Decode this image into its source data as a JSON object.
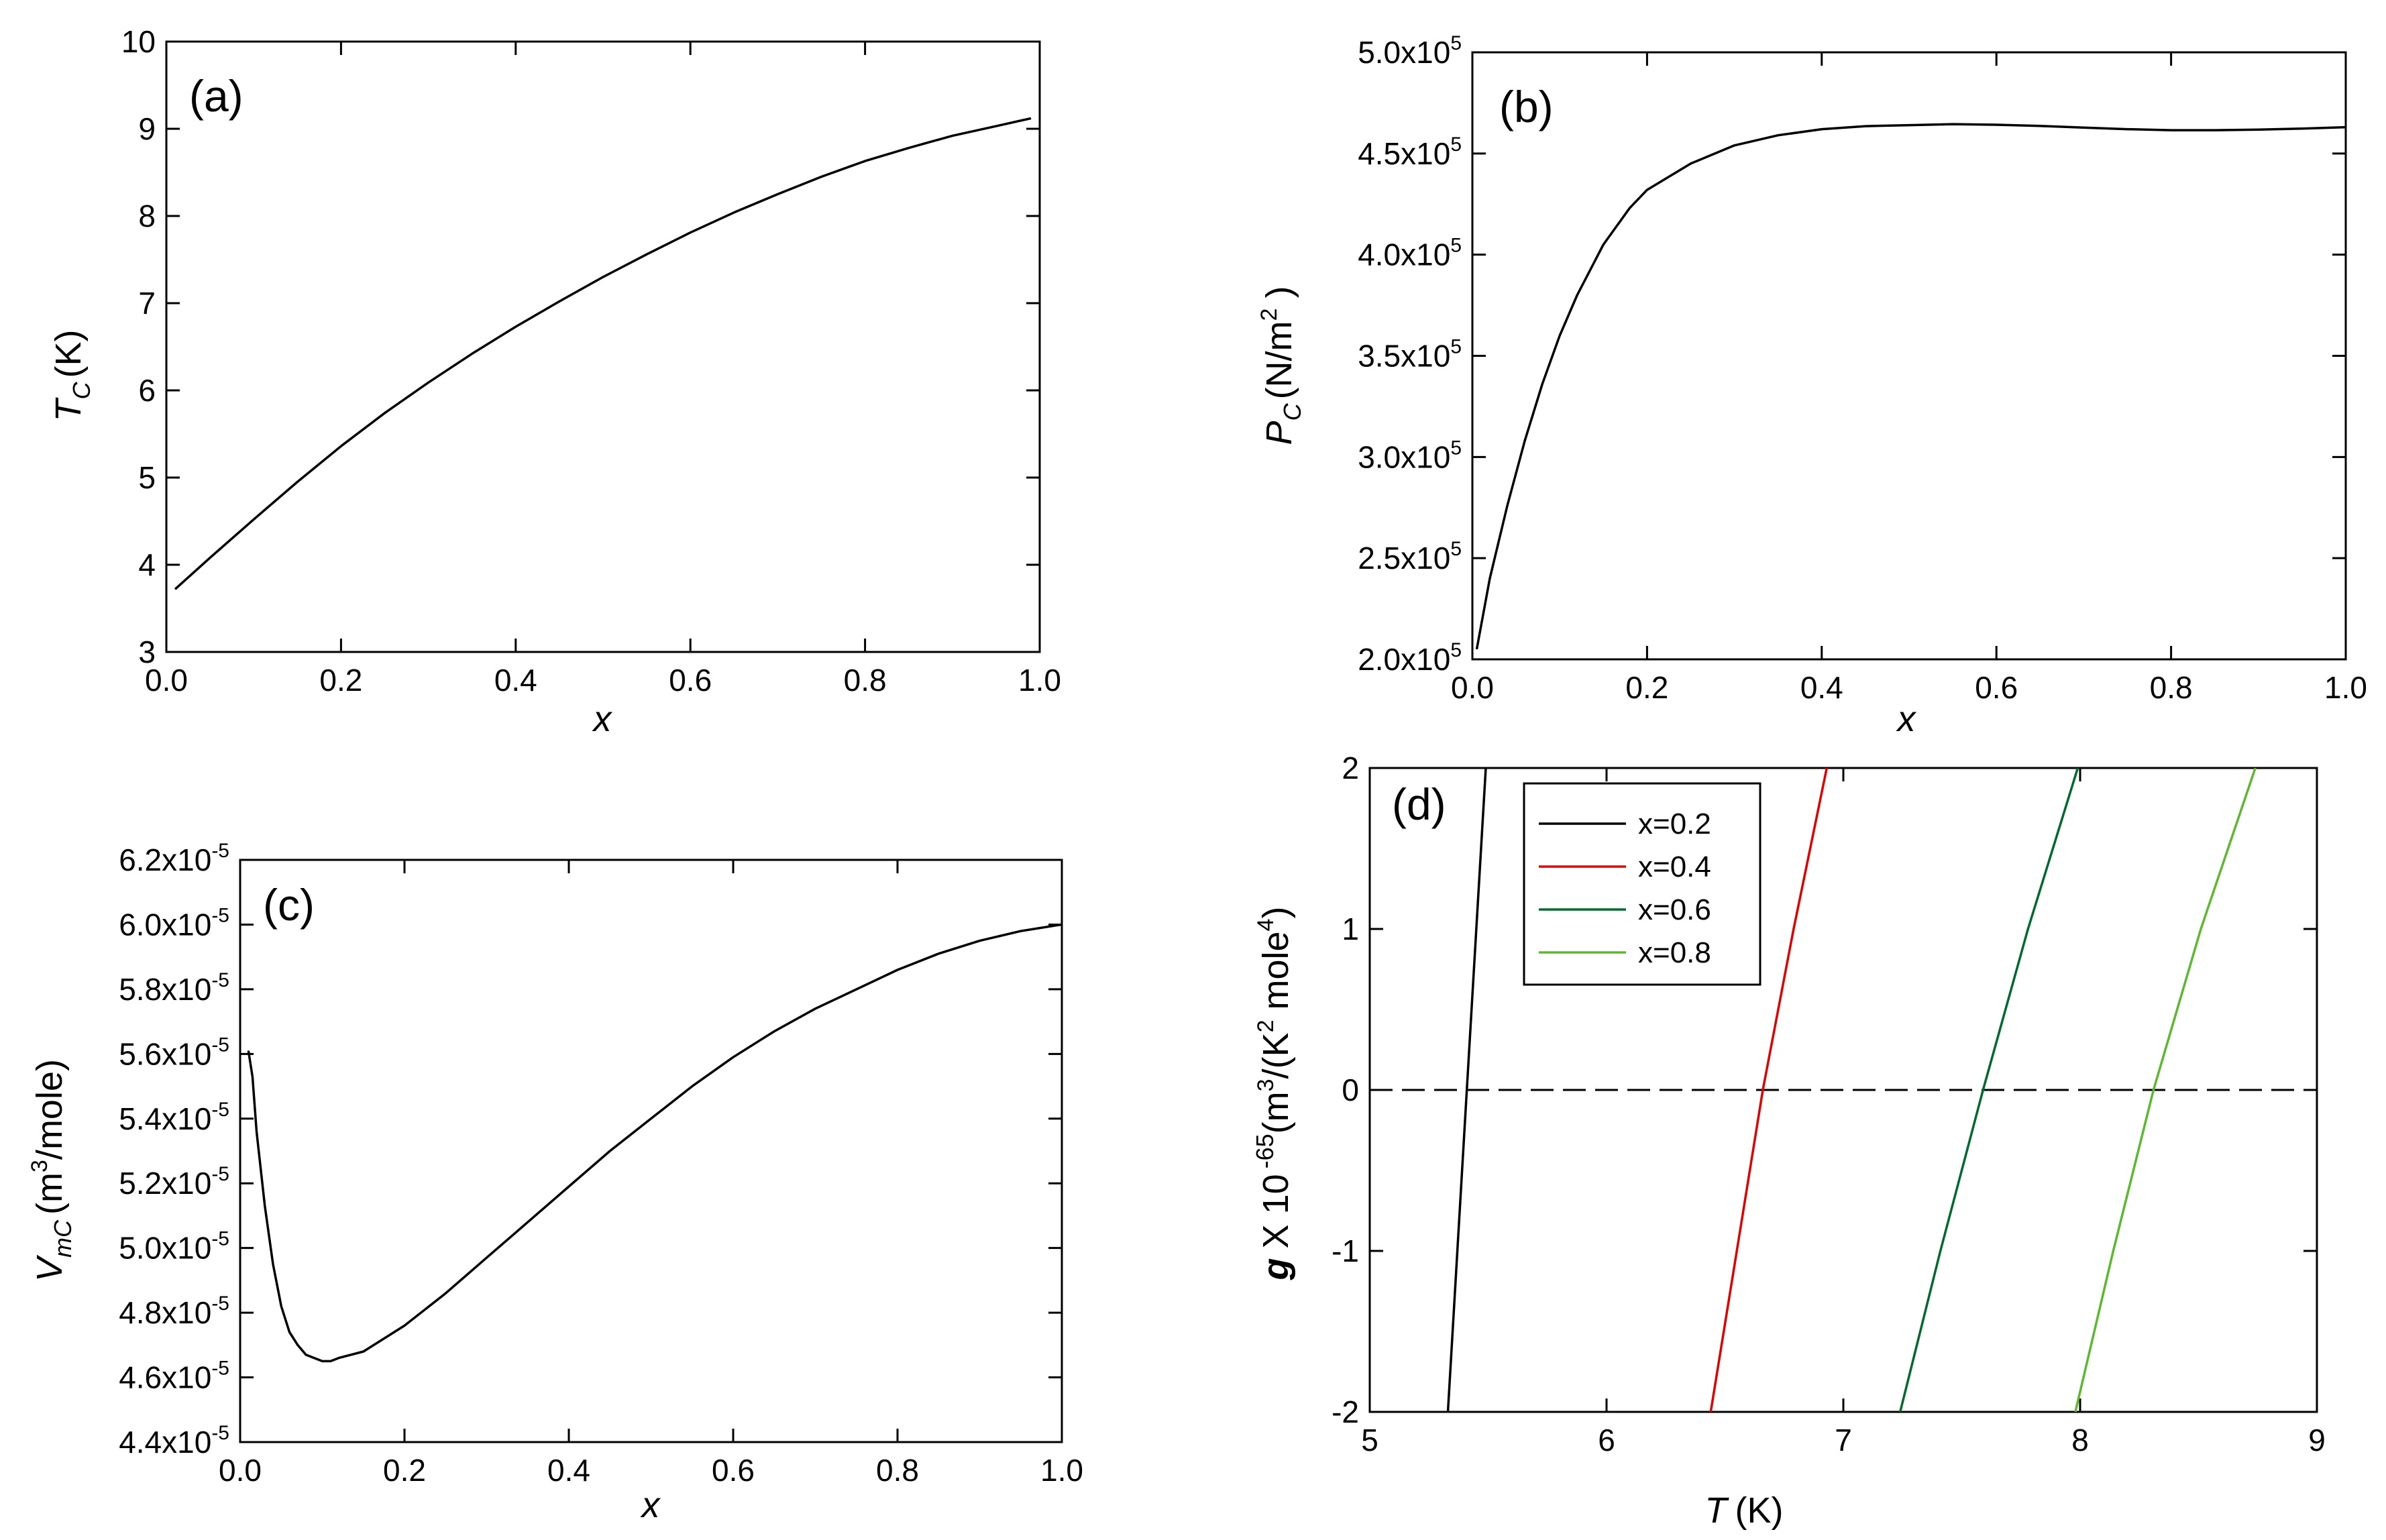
{
  "chart_data": [
    {
      "id": "a",
      "type": "line",
      "panel_label": "(a)",
      "xlabel": "x",
      "ylabel_main": "T",
      "ylabel_sub": "C",
      "ylabel_unit": "(K)",
      "xlim": [
        0.0,
        1.0
      ],
      "ylim": [
        3,
        10
      ],
      "xticks": [
        0.0,
        0.2,
        0.4,
        0.6,
        0.8,
        1.0
      ],
      "xtick_labels": [
        "0.0",
        "0.2",
        "0.4",
        "0.6",
        "0.8",
        "1.0"
      ],
      "yticks": [
        3,
        4,
        5,
        6,
        7,
        8,
        9,
        10
      ],
      "ytick_labels": [
        "3",
        "4",
        "5",
        "6",
        "7",
        "8",
        "9",
        "10"
      ],
      "series": [
        {
          "name": "Tc",
          "color": "#000000",
          "x": [
            0.01,
            0.05,
            0.1,
            0.15,
            0.2,
            0.25,
            0.3,
            0.35,
            0.4,
            0.45,
            0.5,
            0.55,
            0.6,
            0.65,
            0.7,
            0.75,
            0.8,
            0.85,
            0.9,
            0.95,
            0.99
          ],
          "y": [
            3.72,
            4.08,
            4.52,
            4.95,
            5.36,
            5.74,
            6.09,
            6.42,
            6.73,
            7.02,
            7.3,
            7.56,
            7.81,
            8.04,
            8.25,
            8.45,
            8.63,
            8.78,
            8.92,
            9.03,
            9.12
          ]
        }
      ]
    },
    {
      "id": "b",
      "type": "line",
      "panel_label": "(b)",
      "xlabel": "x",
      "ylabel_main": "P",
      "ylabel_sub": "C",
      "ylabel_unit": "(N/m",
      "ylabel_unit_sup": "2",
      "ylabel_unit_end": " )",
      "xlim": [
        0.0,
        1.0
      ],
      "ylim": [
        200000,
        500000
      ],
      "xticks": [
        0.0,
        0.2,
        0.4,
        0.6,
        0.8,
        1.0
      ],
      "xtick_labels": [
        "0.0",
        "0.2",
        "0.4",
        "0.6",
        "0.8",
        "1.0"
      ],
      "yticks": [
        200000,
        250000,
        300000,
        350000,
        400000,
        450000,
        500000
      ],
      "ytick_labels": [
        "2.0x10",
        "2.5x10",
        "3.0x10",
        "3.5x10",
        "4.0x10",
        "4.5x10",
        "5.0x10"
      ],
      "ytick_exponents": [
        "5",
        "5",
        "5",
        "5",
        "5",
        "5",
        "5"
      ],
      "series": [
        {
          "name": "Pc",
          "color": "#000000",
          "x": [
            0.005,
            0.02,
            0.04,
            0.06,
            0.08,
            0.1,
            0.12,
            0.15,
            0.18,
            0.2,
            0.25,
            0.3,
            0.35,
            0.4,
            0.45,
            0.5,
            0.55,
            0.6,
            0.65,
            0.7,
            0.75,
            0.8,
            0.85,
            0.9,
            0.95,
            1.0
          ],
          "y": [
            205000,
            240000,
            276000,
            308000,
            336000,
            360000,
            380000,
            405000,
            423000,
            432000,
            445000,
            454000,
            459000,
            462000,
            463500,
            464000,
            464500,
            464200,
            463600,
            462800,
            462000,
            461500,
            461500,
            461800,
            462300,
            463000
          ]
        }
      ]
    },
    {
      "id": "c",
      "type": "line",
      "panel_label": "(c)",
      "xlabel": "x",
      "ylabel_main": "V",
      "ylabel_sub": "mC",
      "ylabel_unit": "(m",
      "ylabel_unit_sup": "3",
      "ylabel_unit_end": "/mole)",
      "xlim": [
        0.0,
        1.0
      ],
      "ylim": [
        4.4e-05,
        6.2e-05
      ],
      "xticks": [
        0.0,
        0.2,
        0.4,
        0.6,
        0.8,
        1.0
      ],
      "xtick_labels": [
        "0.0",
        "0.2",
        "0.4",
        "0.6",
        "0.8",
        "1.0"
      ],
      "yticks": [
        4.4e-05,
        4.6e-05,
        4.8e-05,
        5e-05,
        5.2e-05,
        5.4e-05,
        5.6e-05,
        5.8e-05,
        6e-05,
        6.2e-05
      ],
      "ytick_labels": [
        "4.4x10",
        "4.6x10",
        "4.8x10",
        "5.0x10",
        "5.2x10",
        "5.4x10",
        "5.6x10",
        "5.8x10",
        "6.0x10",
        "6.2x10"
      ],
      "ytick_exponents": [
        "-5",
        "-5",
        "-5",
        "-5",
        "-5",
        "-5",
        "-5",
        "-5",
        "-5",
        "-5"
      ],
      "series": [
        {
          "name": "Vmc",
          "color": "#000000",
          "x": [
            0.01,
            0.015,
            0.02,
            0.03,
            0.04,
            0.05,
            0.06,
            0.07,
            0.08,
            0.09,
            0.1,
            0.11,
            0.12,
            0.15,
            0.2,
            0.25,
            0.3,
            0.35,
            0.4,
            0.45,
            0.5,
            0.55,
            0.6,
            0.65,
            0.7,
            0.75,
            0.8,
            0.85,
            0.9,
            0.95,
            1.0
          ],
          "y": [
            5.61e-05,
            5.53e-05,
            5.36e-05,
            5.13e-05,
            4.95e-05,
            4.82e-05,
            4.74e-05,
            4.7e-05,
            4.67e-05,
            4.66e-05,
            4.65e-05,
            4.65e-05,
            4.66e-05,
            4.68e-05,
            4.76e-05,
            4.86e-05,
            4.97e-05,
            5.08e-05,
            5.19e-05,
            5.3e-05,
            5.4e-05,
            5.5e-05,
            5.59e-05,
            5.67e-05,
            5.74e-05,
            5.8e-05,
            5.86e-05,
            5.91e-05,
            5.95e-05,
            5.98e-05,
            6e-05
          ]
        }
      ]
    },
    {
      "id": "d",
      "type": "line",
      "panel_label": "(d)",
      "xlabel_main": "T",
      "xlabel_unit": "(K)",
      "ylabel_parts": {
        "g": "g",
        "pre": "X 10",
        "exp": "-65",
        "unit1": "(m",
        "sup1": "3",
        "unit2": "/(K",
        "sup2": "2",
        "unit3": " mole",
        "sup3": "4",
        "unit4": ")"
      },
      "xlim": [
        5,
        9
      ],
      "ylim": [
        -2,
        2
      ],
      "xticks": [
        5,
        6,
        7,
        8,
        9
      ],
      "xtick_labels": [
        "5",
        "6",
        "7",
        "8",
        "9"
      ],
      "yticks": [
        -2,
        -1,
        0,
        1,
        2
      ],
      "ytick_labels": [
        "-2",
        "-1",
        "0",
        "1",
        "2"
      ],
      "reference_line": {
        "y": 0,
        "style": "dashed"
      },
      "legend": {
        "position": "top-left"
      },
      "series": [
        {
          "name": "x=0.2",
          "color": "#000000",
          "x": [
            5.33,
            5.41,
            5.49
          ],
          "y": [
            -2,
            0,
            2
          ]
        },
        {
          "name": "x=0.4",
          "color": "#e00000",
          "x": [
            6.44,
            6.55,
            6.66,
            6.79,
            6.93
          ],
          "y": [
            -2,
            -1,
            0,
            1,
            2
          ]
        },
        {
          "name": "x=0.6",
          "color": "#006a2e",
          "x": [
            7.24,
            7.41,
            7.59,
            7.78,
            7.99
          ],
          "y": [
            -2,
            -1,
            0,
            1,
            2
          ]
        },
        {
          "name": "x=0.8",
          "color": "#5cb82f",
          "x": [
            7.98,
            8.14,
            8.31,
            8.51,
            8.74
          ],
          "y": [
            -2,
            -1,
            0,
            1,
            2
          ]
        }
      ]
    }
  ]
}
